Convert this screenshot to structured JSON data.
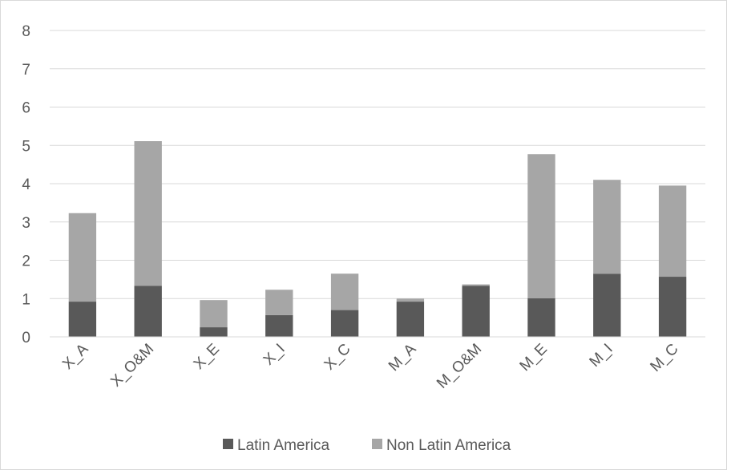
{
  "chart_data": {
    "type": "bar",
    "stacked": true,
    "title": "",
    "xlabel": "",
    "ylabel": "",
    "categories": [
      "X_A",
      "X_O&M",
      "X_E",
      "X_I",
      "X_C",
      "M_A",
      "M_O&M",
      "M_E",
      "M_I",
      "M_C"
    ],
    "series": [
      {
        "name": "Latin America",
        "color": "#595959",
        "values": [
          0.92,
          1.33,
          0.25,
          0.57,
          0.7,
          0.92,
          1.33,
          1.01,
          1.65,
          1.57
        ]
      },
      {
        "name": "Non Latin America",
        "color": "#a6a6a6",
        "values": [
          2.31,
          3.78,
          0.71,
          0.66,
          0.95,
          0.08,
          0.04,
          3.76,
          2.45,
          2.38
        ]
      }
    ],
    "ylim": [
      0,
      8
    ],
    "yticks": [
      0,
      1,
      2,
      3,
      4,
      5,
      6,
      7,
      8
    ],
    "grid": true,
    "legend_position": "bottom"
  }
}
